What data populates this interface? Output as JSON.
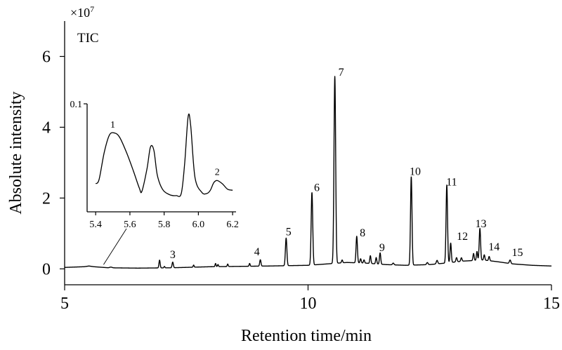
{
  "chart_data": [
    {
      "type": "line",
      "title": "",
      "trace_label": "TIC",
      "scale_label": "×10",
      "scale_exponent": "7",
      "xlabel": "Retention time/min",
      "ylabel": "Absolute intensity",
      "xlim": [
        5,
        15
      ],
      "ylim": [
        -0.45,
        7.0
      ],
      "xticks": [
        5,
        10,
        15
      ],
      "yticks": [
        0,
        2,
        4,
        6
      ],
      "grid": false,
      "legend": "none",
      "baseline": [
        [
          5.0,
          0.04
        ],
        [
          5.4,
          0.06
        ],
        [
          5.5,
          0.08
        ],
        [
          5.6,
          0.06
        ],
        [
          5.9,
          0.03
        ],
        [
          6.5,
          0.02
        ],
        [
          7.2,
          0.03
        ],
        [
          8.0,
          0.06
        ],
        [
          8.6,
          0.07
        ],
        [
          9.2,
          0.08
        ],
        [
          9.6,
          0.09
        ],
        [
          10.0,
          0.1
        ],
        [
          10.4,
          0.14
        ],
        [
          10.8,
          0.18
        ],
        [
          11.2,
          0.16
        ],
        [
          11.6,
          0.12
        ],
        [
          12.0,
          0.1
        ],
        [
          12.5,
          0.12
        ],
        [
          12.8,
          0.16
        ],
        [
          13.2,
          0.22
        ],
        [
          13.6,
          0.25
        ],
        [
          13.9,
          0.2
        ],
        [
          14.2,
          0.14
        ],
        [
          14.6,
          0.1
        ],
        [
          15.0,
          0.08
        ]
      ],
      "peaks": [
        {
          "x": 5.95,
          "height": 0.02,
          "width": 0.025
        },
        {
          "x": 6.95,
          "height": 0.22,
          "width": 0.012
        },
        {
          "x": 7.05,
          "height": 0.04,
          "width": 0.01
        },
        {
          "x": 7.22,
          "height": 0.16,
          "width": 0.013
        },
        {
          "x": 7.65,
          "height": 0.06,
          "width": 0.01
        },
        {
          "x": 8.1,
          "height": 0.09,
          "width": 0.01
        },
        {
          "x": 8.15,
          "height": 0.06,
          "width": 0.01
        },
        {
          "x": 8.35,
          "height": 0.07,
          "width": 0.01
        },
        {
          "x": 8.8,
          "height": 0.08,
          "width": 0.01
        },
        {
          "x": 9.02,
          "height": 0.18,
          "width": 0.013
        },
        {
          "x": 9.55,
          "height": 0.78,
          "width": 0.015
        },
        {
          "x": 10.08,
          "height": 2.05,
          "width": 0.016
        },
        {
          "x": 10.55,
          "height": 5.28,
          "width": 0.017
        },
        {
          "x": 10.7,
          "height": 0.08,
          "width": 0.012
        },
        {
          "x": 11.0,
          "height": 0.75,
          "width": 0.014
        },
        {
          "x": 11.08,
          "height": 0.12,
          "width": 0.012
        },
        {
          "x": 11.15,
          "height": 0.09,
          "width": 0.012
        },
        {
          "x": 11.28,
          "height": 0.22,
          "width": 0.012
        },
        {
          "x": 11.4,
          "height": 0.18,
          "width": 0.012
        },
        {
          "x": 11.48,
          "height": 0.32,
          "width": 0.013
        },
        {
          "x": 11.75,
          "height": 0.05,
          "width": 0.015
        },
        {
          "x": 12.12,
          "height": 2.5,
          "width": 0.015
        },
        {
          "x": 12.45,
          "height": 0.06,
          "width": 0.015
        },
        {
          "x": 12.65,
          "height": 0.1,
          "width": 0.015
        },
        {
          "x": 12.85,
          "height": 2.2,
          "width": 0.015
        },
        {
          "x": 12.93,
          "height": 0.55,
          "width": 0.013
        },
        {
          "x": 13.05,
          "height": 0.12,
          "width": 0.013
        },
        {
          "x": 13.15,
          "height": 0.1,
          "width": 0.013
        },
        {
          "x": 13.4,
          "height": 0.2,
          "width": 0.012
        },
        {
          "x": 13.47,
          "height": 0.25,
          "width": 0.012
        },
        {
          "x": 13.53,
          "height": 0.9,
          "width": 0.014
        },
        {
          "x": 13.62,
          "height": 0.15,
          "width": 0.012
        },
        {
          "x": 13.72,
          "height": 0.12,
          "width": 0.012
        },
        {
          "x": 14.15,
          "height": 0.1,
          "width": 0.015
        }
      ],
      "peak_labels": [
        {
          "label": "3",
          "x": 7.22,
          "y": 0.3
        },
        {
          "label": "4",
          "x": 8.95,
          "y": 0.38
        },
        {
          "label": "5",
          "x": 9.6,
          "y": 0.95
        },
        {
          "label": "6",
          "x": 10.18,
          "y": 2.2
        },
        {
          "label": "7",
          "x": 10.68,
          "y": 5.45
        },
        {
          "label": "8",
          "x": 11.12,
          "y": 0.92
        },
        {
          "label": "9",
          "x": 11.52,
          "y": 0.5
        },
        {
          "label": "10",
          "x": 12.2,
          "y": 2.65
        },
        {
          "label": "11",
          "x": 12.95,
          "y": 2.35
        },
        {
          "label": "12",
          "x": 13.17,
          "y": 0.82
        },
        {
          "label": "13",
          "x": 13.55,
          "y": 1.17
        },
        {
          "label": "14",
          "x": 13.82,
          "y": 0.52
        },
        {
          "label": "15",
          "x": 14.3,
          "y": 0.36
        }
      ]
    },
    {
      "type": "line",
      "title": "",
      "xlim": [
        5.35,
        6.22
      ],
      "ylim": [
        0,
        0.1
      ],
      "xticks": [
        5.4,
        5.6,
        5.8,
        6.0,
        6.2
      ],
      "ytick_labels": [
        "0.1"
      ],
      "zoom_from": 5.8,
      "points": [
        [
          5.4,
          0.026
        ],
        [
          5.42,
          0.03
        ],
        [
          5.45,
          0.055
        ],
        [
          5.48,
          0.071
        ],
        [
          5.51,
          0.073
        ],
        [
          5.54,
          0.069
        ],
        [
          5.58,
          0.055
        ],
        [
          5.62,
          0.038
        ],
        [
          5.655,
          0.022
        ],
        [
          5.67,
          0.019
        ],
        [
          5.7,
          0.04
        ],
        [
          5.72,
          0.06
        ],
        [
          5.74,
          0.057
        ],
        [
          5.76,
          0.034
        ],
        [
          5.79,
          0.021
        ],
        [
          5.83,
          0.016
        ],
        [
          5.87,
          0.015
        ],
        [
          5.9,
          0.017
        ],
        [
          5.92,
          0.045
        ],
        [
          5.94,
          0.088
        ],
        [
          5.955,
          0.08
        ],
        [
          5.98,
          0.032
        ],
        [
          6.02,
          0.018
        ],
        [
          6.05,
          0.017
        ],
        [
          6.07,
          0.02
        ],
        [
          6.09,
          0.027
        ],
        [
          6.11,
          0.029
        ],
        [
          6.14,
          0.026
        ],
        [
          6.17,
          0.021
        ],
        [
          6.2,
          0.02
        ]
      ],
      "peak_labels": [
        {
          "label": "1",
          "x": 5.5,
          "y": 0.078
        },
        {
          "label": "2",
          "x": 6.11,
          "y": 0.034
        }
      ]
    }
  ]
}
